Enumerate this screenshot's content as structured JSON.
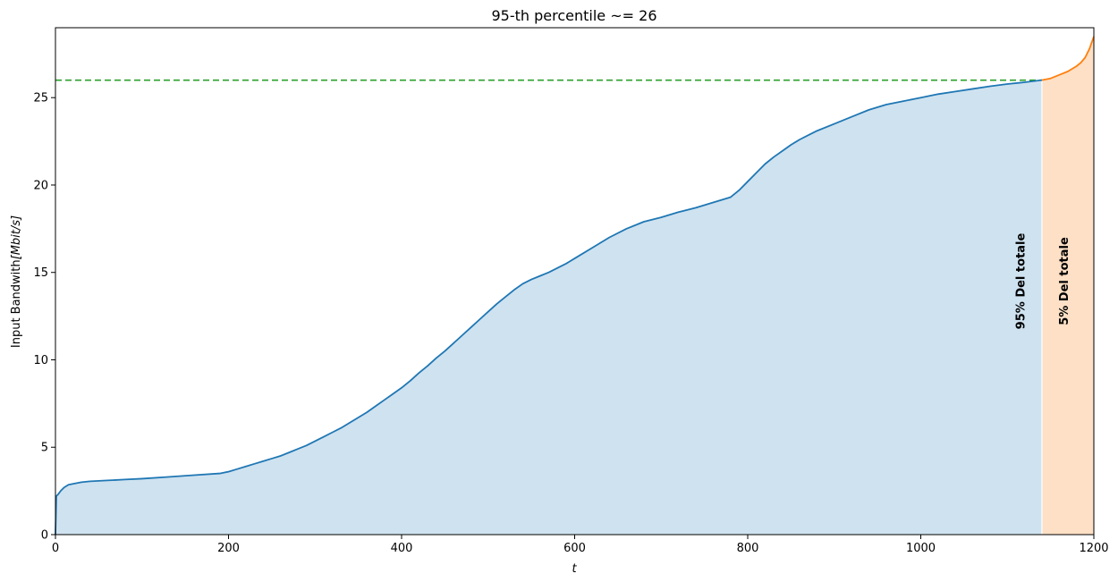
{
  "chart_data": {
    "type": "area",
    "title": "95-th percentile ~= 26",
    "xlabel": "t",
    "ylabel_prefix": "Input Bandwith",
    "ylabel_unit": "[Mbit/s]",
    "xlim": [
      0,
      1200
    ],
    "ylim": [
      0,
      29
    ],
    "x_ticks": [
      0,
      200,
      400,
      600,
      800,
      1000,
      1200
    ],
    "y_ticks": [
      0,
      5,
      10,
      15,
      20,
      25
    ],
    "x_tick_labels": [
      "0",
      "200",
      "400",
      "600",
      "800",
      "1000",
      "1200"
    ],
    "y_tick_labels": [
      "0",
      "5",
      "10",
      "15",
      "20",
      "25"
    ],
    "grid": false,
    "percentile_value": 26,
    "split_x": 1140,
    "series": [
      {
        "color": "#1f77b4",
        "fill_color": "#cfe2f0",
        "x": [
          0,
          1,
          3,
          6,
          10,
          15,
          20,
          30,
          40,
          60,
          80,
          100,
          130,
          160,
          190,
          200,
          210,
          220,
          230,
          240,
          250,
          260,
          270,
          280,
          290,
          300,
          310,
          320,
          330,
          340,
          350,
          360,
          370,
          380,
          390,
          400,
          410,
          420,
          430,
          440,
          450,
          460,
          470,
          480,
          490,
          500,
          510,
          520,
          530,
          540,
          550,
          560,
          570,
          580,
          590,
          600,
          620,
          640,
          660,
          680,
          700,
          720,
          740,
          760,
          780,
          790,
          800,
          810,
          820,
          830,
          840,
          850,
          860,
          870,
          880,
          900,
          920,
          940,
          960,
          980,
          1000,
          1020,
          1040,
          1060,
          1080,
          1100,
          1120,
          1140
        ],
        "values": [
          0.0,
          2.2,
          2.3,
          2.5,
          2.7,
          2.85,
          2.9,
          3.0,
          3.05,
          3.1,
          3.15,
          3.2,
          3.3,
          3.4,
          3.5,
          3.6,
          3.75,
          3.9,
          4.05,
          4.2,
          4.35,
          4.5,
          4.7,
          4.9,
          5.1,
          5.35,
          5.6,
          5.85,
          6.1,
          6.4,
          6.7,
          7.0,
          7.35,
          7.7,
          8.05,
          8.4,
          8.8,
          9.25,
          9.65,
          10.1,
          10.5,
          10.95,
          11.4,
          11.85,
          12.3,
          12.75,
          13.2,
          13.6,
          14.0,
          14.35,
          14.6,
          14.8,
          15.0,
          15.25,
          15.5,
          15.8,
          16.4,
          17.0,
          17.5,
          17.9,
          18.15,
          18.45,
          18.7,
          19.0,
          19.3,
          19.7,
          20.2,
          20.7,
          21.2,
          21.6,
          21.95,
          22.3,
          22.6,
          22.85,
          23.1,
          23.5,
          23.9,
          24.3,
          24.6,
          24.8,
          25.0,
          25.2,
          25.35,
          25.5,
          25.65,
          25.78,
          25.88,
          26.0
        ]
      },
      {
        "color": "#ff7f0e",
        "fill_color": "#fde0c5",
        "x": [
          1140,
          1150,
          1160,
          1170,
          1180,
          1185,
          1190,
          1195,
          1200
        ],
        "values": [
          26.0,
          26.1,
          26.3,
          26.5,
          26.8,
          27.0,
          27.3,
          27.8,
          28.5
        ]
      }
    ],
    "annotations": [
      {
        "text": "95% Del totale",
        "x": 1120,
        "y": 14.5
      },
      {
        "text": "5% Del totale",
        "x": 1170,
        "y": 14.5
      }
    ],
    "reference_line": {
      "y": 26,
      "color": "#2ca02c",
      "style": "dashed"
    }
  }
}
